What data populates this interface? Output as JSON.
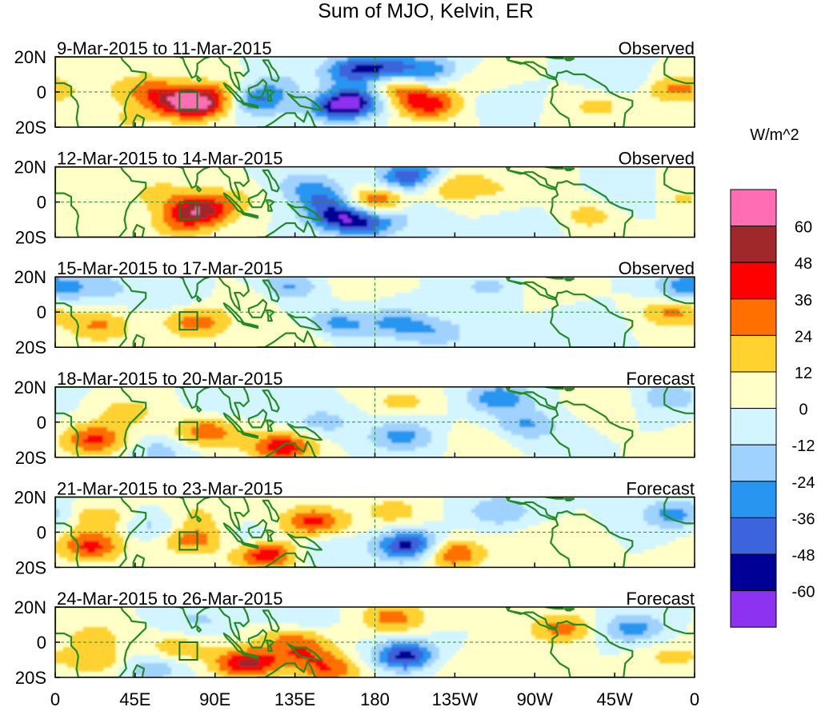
{
  "chart_data": {
    "type": "heatmap",
    "title": "Sum of MJO, Kelvin, ER",
    "colorbar": {
      "unit_label": "W/m^2",
      "levels": [
        "60",
        "48",
        "36",
        "24",
        "12",
        "0",
        "-12",
        "-24",
        "-36",
        "-48",
        "-60"
      ],
      "colors": [
        "#ff6eb4",
        "#a0282a",
        "#ff0000",
        "#ff7000",
        "#ffd230",
        "#ffffc8",
        "#d2f5ff",
        "#a0d2ff",
        "#2896f0",
        "#3c64dc",
        "#000096",
        "#8c32f0"
      ]
    },
    "x_axis": {
      "tick_labels": [
        "0",
        "45E",
        "90E",
        "135E",
        "180",
        "135W",
        "90W",
        "45W",
        "0"
      ],
      "range_deg_east": [
        0,
        360
      ]
    },
    "y_axis": {
      "tick_labels": [
        "20N",
        "0",
        "20S"
      ],
      "range_deg_lat": [
        -20,
        20
      ]
    },
    "panels": [
      {
        "date_range": "9-Mar-2015 to 11-Mar-2015",
        "status": "Observed",
        "anomalies": [
          {
            "lon": 22,
            "lat": -1,
            "value": 6
          },
          {
            "lon": 48,
            "lat": 4,
            "value": 16
          },
          {
            "lon": 62,
            "lat": -3,
            "value": 30
          },
          {
            "lon": 75,
            "lat": -9,
            "value": 18
          },
          {
            "lon": 82,
            "lat": -6,
            "value": 50
          },
          {
            "lon": 95,
            "lat": 2,
            "value": 14
          },
          {
            "lon": 113,
            "lat": -5,
            "value": -38
          },
          {
            "lon": 125,
            "lat": 4,
            "value": -16
          },
          {
            "lon": 148,
            "lat": -2,
            "value": 10
          },
          {
            "lon": 160,
            "lat": -8,
            "value": -56
          },
          {
            "lon": 172,
            "lat": -3,
            "value": -36
          },
          {
            "lon": 168,
            "lat": 12,
            "value": -40
          },
          {
            "lon": 188,
            "lat": 14,
            "value": -34
          },
          {
            "lon": 190,
            "lat": 2,
            "value": 34
          },
          {
            "lon": 210,
            "lat": -7,
            "value": 44
          },
          {
            "lon": 212,
            "lat": 12,
            "value": -28
          },
          {
            "lon": 235,
            "lat": 6,
            "value": 12
          },
          {
            "lon": 248,
            "lat": -5,
            "value": -10
          },
          {
            "lon": 305,
            "lat": -8,
            "value": 16
          },
          {
            "lon": 320,
            "lat": 6,
            "value": -12
          },
          {
            "lon": 350,
            "lat": 2,
            "value": 28
          },
          {
            "lon": 40,
            "lat": -16,
            "value": 12
          }
        ]
      },
      {
        "date_range": "12-Mar-2015 to 14-Mar-2015",
        "status": "Observed",
        "anomalies": [
          {
            "lon": 30,
            "lat": 2,
            "value": 8
          },
          {
            "lon": 60,
            "lat": 6,
            "value": 14
          },
          {
            "lon": 80,
            "lat": -5,
            "value": 54
          },
          {
            "lon": 70,
            "lat": -14,
            "value": 18
          },
          {
            "lon": 100,
            "lat": 2,
            "value": 14
          },
          {
            "lon": 140,
            "lat": 10,
            "value": -18
          },
          {
            "lon": 152,
            "lat": 2,
            "value": -28
          },
          {
            "lon": 160,
            "lat": -8,
            "value": -46
          },
          {
            "lon": 176,
            "lat": -12,
            "value": -36
          },
          {
            "lon": 180,
            "lat": 0,
            "value": 46
          },
          {
            "lon": 200,
            "lat": 14,
            "value": -50
          },
          {
            "lon": 198,
            "lat": -4,
            "value": -14
          },
          {
            "lon": 215,
            "lat": 8,
            "value": 18
          },
          {
            "lon": 232,
            "lat": 10,
            "value": 16
          },
          {
            "lon": 258,
            "lat": 6,
            "value": 8
          },
          {
            "lon": 300,
            "lat": -8,
            "value": 18
          },
          {
            "lon": 328,
            "lat": 2,
            "value": -14
          },
          {
            "lon": 350,
            "lat": 2,
            "value": 16
          },
          {
            "lon": 272,
            "lat": -12,
            "value": -8
          }
        ]
      },
      {
        "date_range": "15-Mar-2015 to 17-Mar-2015",
        "status": "Observed",
        "anomalies": [
          {
            "lon": 25,
            "lat": -8,
            "value": 26
          },
          {
            "lon": 25,
            "lat": 14,
            "value": -18
          },
          {
            "lon": 80,
            "lat": -6,
            "value": 32
          },
          {
            "lon": 65,
            "lat": 10,
            "value": -12
          },
          {
            "lon": 112,
            "lat": 8,
            "value": 14
          },
          {
            "lon": 130,
            "lat": 14,
            "value": -28
          },
          {
            "lon": 145,
            "lat": -12,
            "value": 22
          },
          {
            "lon": 156,
            "lat": -8,
            "value": -38
          },
          {
            "lon": 168,
            "lat": 16,
            "value": 8
          },
          {
            "lon": 192,
            "lat": -6,
            "value": -26
          },
          {
            "lon": 215,
            "lat": -12,
            "value": -20
          },
          {
            "lon": 245,
            "lat": 14,
            "value": -16
          },
          {
            "lon": 275,
            "lat": 14,
            "value": 10
          },
          {
            "lon": 300,
            "lat": -6,
            "value": -8
          },
          {
            "lon": 348,
            "lat": 0,
            "value": 28
          },
          {
            "lon": 356,
            "lat": 14,
            "value": -34
          }
        ]
      },
      {
        "date_range": "18-Mar-2015 to 20-Mar-2015",
        "status": "Forecast",
        "anomalies": [
          {
            "lon": 22,
            "lat": -10,
            "value": 40
          },
          {
            "lon": 40,
            "lat": 6,
            "value": 18
          },
          {
            "lon": 85,
            "lat": -6,
            "value": 34
          },
          {
            "lon": 60,
            "lat": -16,
            "value": -18
          },
          {
            "lon": 100,
            "lat": 12,
            "value": -12
          },
          {
            "lon": 128,
            "lat": -14,
            "value": 46
          },
          {
            "lon": 150,
            "lat": 0,
            "value": -18
          },
          {
            "lon": 195,
            "lat": -8,
            "value": -30
          },
          {
            "lon": 195,
            "lat": 12,
            "value": 16
          },
          {
            "lon": 250,
            "lat": 14,
            "value": -34
          },
          {
            "lon": 240,
            "lat": -10,
            "value": 12
          },
          {
            "lon": 265,
            "lat": -2,
            "value": -26
          },
          {
            "lon": 310,
            "lat": 12,
            "value": 12
          },
          {
            "lon": 345,
            "lat": 14,
            "value": -22
          }
        ]
      },
      {
        "date_range": "21-Mar-2015 to 23-Mar-2015",
        "status": "Forecast",
        "anomalies": [
          {
            "lon": 20,
            "lat": -8,
            "value": 40
          },
          {
            "lon": 25,
            "lat": 8,
            "value": 22
          },
          {
            "lon": 55,
            "lat": 4,
            "value": -18
          },
          {
            "lon": 78,
            "lat": -4,
            "value": 32
          },
          {
            "lon": 78,
            "lat": 10,
            "value": 14
          },
          {
            "lon": 110,
            "lat": -6,
            "value": -20
          },
          {
            "lon": 118,
            "lat": -12,
            "value": 54
          },
          {
            "lon": 145,
            "lat": 6,
            "value": 40
          },
          {
            "lon": 150,
            "lat": -10,
            "value": -14
          },
          {
            "lon": 190,
            "lat": 12,
            "value": 18
          },
          {
            "lon": 200,
            "lat": -8,
            "value": -58
          },
          {
            "lon": 222,
            "lat": -12,
            "value": 42
          },
          {
            "lon": 250,
            "lat": 12,
            "value": -24
          },
          {
            "lon": 275,
            "lat": -4,
            "value": 10
          },
          {
            "lon": 348,
            "lat": 10,
            "value": -30
          }
        ]
      },
      {
        "date_range": "24-Mar-2015 to 26-Mar-2015",
        "status": "Forecast",
        "anomalies": [
          {
            "lon": 22,
            "lat": 4,
            "value": 16
          },
          {
            "lon": 22,
            "lat": -10,
            "value": 22
          },
          {
            "lon": 68,
            "lat": -4,
            "value": 22
          },
          {
            "lon": 80,
            "lat": 12,
            "value": -14
          },
          {
            "lon": 108,
            "lat": -12,
            "value": 52
          },
          {
            "lon": 132,
            "lat": 4,
            "value": 24
          },
          {
            "lon": 140,
            "lat": -6,
            "value": 28
          },
          {
            "lon": 155,
            "lat": -16,
            "value": 32
          },
          {
            "lon": 135,
            "lat": 12,
            "value": -16
          },
          {
            "lon": 190,
            "lat": 14,
            "value": 30
          },
          {
            "lon": 198,
            "lat": -8,
            "value": -56
          },
          {
            "lon": 218,
            "lat": -12,
            "value": 12
          },
          {
            "lon": 285,
            "lat": 8,
            "value": 30
          },
          {
            "lon": 325,
            "lat": 8,
            "value": -30
          },
          {
            "lon": 345,
            "lat": -8,
            "value": 14
          },
          {
            "lon": 55,
            "lat": -14,
            "value": -22
          }
        ]
      }
    ]
  }
}
